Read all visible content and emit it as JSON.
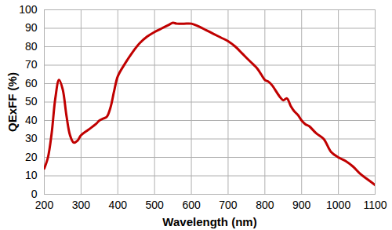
{
  "chart_data": {
    "type": "line",
    "x_label": "Wavelength (nm)",
    "y_label": "QExFF (%)",
    "x": [
      200,
      210,
      220,
      230,
      240,
      250,
      260,
      270,
      280,
      290,
      300,
      320,
      340,
      350,
      360,
      370,
      380,
      390,
      400,
      420,
      440,
      460,
      480,
      500,
      520,
      540,
      550,
      560,
      580,
      600,
      620,
      640,
      660,
      680,
      700,
      720,
      740,
      760,
      780,
      790,
      800,
      810,
      820,
      840,
      850,
      860,
      870,
      880,
      890,
      900,
      910,
      920,
      940,
      960,
      980,
      1000,
      1020,
      1040,
      1060,
      1080,
      1100
    ],
    "series": [
      {
        "name": "QExFF",
        "color": "#c00000",
        "marker": "none",
        "line_style": "solid",
        "values": [
          14,
          20,
          33,
          52,
          62,
          57,
          43,
          32,
          28,
          29,
          32,
          35,
          38,
          40,
          41,
          42,
          47,
          56,
          64,
          71,
          77,
          82,
          85.5,
          88,
          90,
          92,
          93,
          92.5,
          92.5,
          92.5,
          91,
          89,
          87,
          85,
          83,
          80,
          76,
          72,
          68,
          65,
          62,
          61,
          59,
          53,
          51,
          52,
          48,
          45,
          43,
          40,
          38,
          37,
          33,
          30,
          23,
          20,
          18,
          15,
          11,
          8,
          5
        ]
      }
    ],
    "xlim": [
      200,
      1100
    ],
    "xticks": [
      200,
      300,
      400,
      500,
      600,
      700,
      800,
      900,
      1000,
      1100
    ],
    "ylim": [
      0,
      100
    ],
    "yticks": [
      0,
      10,
      20,
      30,
      40,
      50,
      60,
      70,
      80,
      90,
      100
    ],
    "grid": true
  }
}
